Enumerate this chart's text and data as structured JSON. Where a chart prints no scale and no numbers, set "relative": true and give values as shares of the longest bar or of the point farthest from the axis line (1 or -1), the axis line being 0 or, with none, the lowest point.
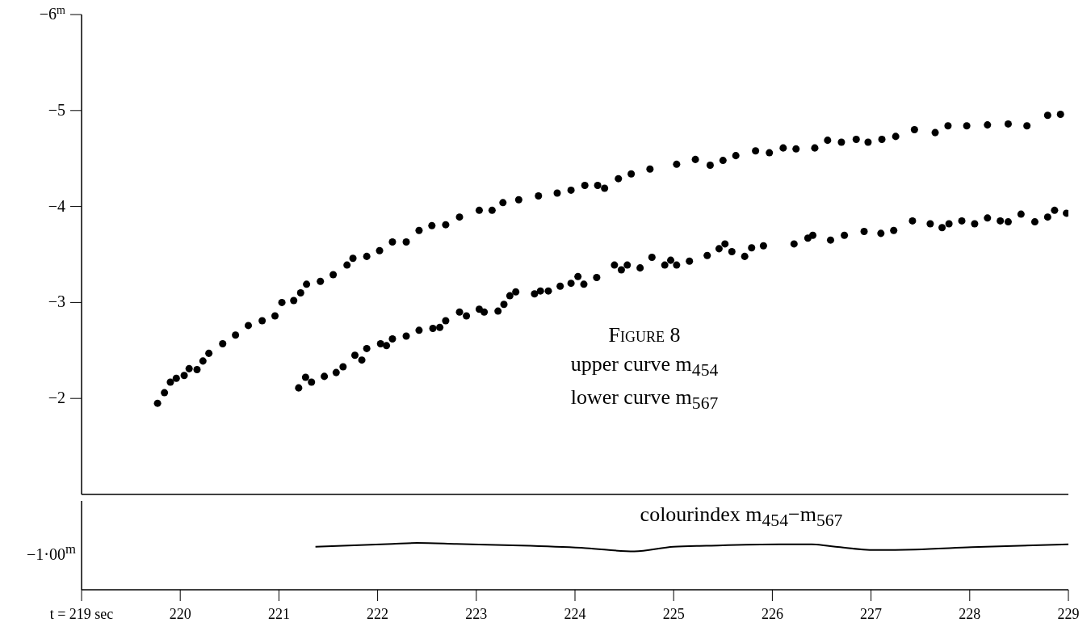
{
  "chart_data": [
    {
      "type": "scatter",
      "title": "Figure 8",
      "annotations": [
        "upper curve m$_{454}$",
        "lower curve m$_{567}$"
      ],
      "series": [
        {
          "color": "#000000",
          "x": [
            219.77,
            219.84,
            219.9,
            219.96,
            220.04,
            220.09,
            220.17,
            220.23,
            220.29,
            220.43,
            220.56,
            220.69,
            220.83,
            220.96,
            221.03,
            221.15,
            221.22,
            221.28,
            221.42,
            221.55,
            221.69,
            221.75,
            221.89,
            222.02,
            222.15,
            222.29,
            222.42,
            222.55,
            222.69,
            222.83,
            223.03,
            223.16,
            223.27,
            223.43,
            223.63,
            223.82,
            223.96,
            224.1,
            224.23,
            224.3,
            224.44,
            224.57,
            224.76,
            225.03,
            225.22,
            225.37,
            225.5,
            225.63,
            225.83,
            225.97,
            226.11,
            226.24,
            226.43,
            226.56,
            226.7,
            226.85,
            226.97,
            227.11,
            227.25,
            227.44,
            227.65,
            227.78,
            227.97,
            228.18,
            228.39,
            228.58,
            228.79,
            228.92
          ],
          "values": [
            -1.95,
            -2.06,
            -2.17,
            -2.21,
            -2.24,
            -2.31,
            -2.3,
            -2.39,
            -2.47,
            -2.57,
            -2.66,
            -2.76,
            -2.81,
            -2.86,
            -3,
            -3.02,
            -3.1,
            -3.19,
            -3.22,
            -3.29,
            -3.39,
            -3.46,
            -3.48,
            -3.54,
            -3.63,
            -3.63,
            -3.75,
            -3.8,
            -3.81,
            -3.89,
            -3.96,
            -3.96,
            -4.04,
            -4.07,
            -4.11,
            -4.14,
            -4.17,
            -4.22,
            -4.22,
            -4.19,
            -4.29,
            -4.34,
            -4.39,
            -4.44,
            -4.49,
            -4.43,
            -4.48,
            -4.53,
            -4.58,
            -4.56,
            -4.61,
            -4.6,
            -4.61,
            -4.69,
            -4.67,
            -4.7,
            -4.67,
            -4.7,
            -4.73,
            -4.8,
            -4.77,
            -4.84,
            -4.84,
            -4.85,
            -4.86,
            -4.84,
            -4.95,
            -4.96
          ]
        },
        {
          "color": "#000000",
          "x": [
            221.2,
            221.27,
            221.33,
            221.46,
            221.58,
            221.65,
            221.77,
            221.84,
            221.89,
            222.03,
            222.09,
            222.15,
            222.29,
            222.42,
            222.56,
            222.63,
            222.69,
            222.83,
            222.9,
            223.03,
            223.08,
            223.22,
            223.28,
            223.34,
            223.4,
            223.59,
            223.65,
            223.73,
            223.85,
            223.96,
            224.03,
            224.09,
            224.22,
            224.4,
            224.47,
            224.53,
            224.66,
            224.78,
            224.91,
            224.97,
            225.03,
            225.16,
            225.34,
            225.46,
            225.52,
            225.59,
            225.72,
            225.79,
            225.91,
            226.22,
            226.36,
            226.41,
            226.59,
            226.73,
            226.93,
            227.1,
            227.23,
            227.42,
            227.6,
            227.72,
            227.79,
            227.92,
            228.05,
            228.18,
            228.31,
            228.39,
            228.52,
            228.66,
            228.79,
            228.86,
            228.98
          ],
          "values": [
            -2.11,
            -2.22,
            -2.17,
            -2.23,
            -2.27,
            -2.33,
            -2.45,
            -2.4,
            -2.52,
            -2.57,
            -2.55,
            -2.62,
            -2.65,
            -2.71,
            -2.73,
            -2.74,
            -2.81,
            -2.9,
            -2.86,
            -2.93,
            -2.9,
            -2.91,
            -2.98,
            -3.07,
            -3.11,
            -3.09,
            -3.12,
            -3.12,
            -3.17,
            -3.2,
            -3.27,
            -3.19,
            -3.26,
            -3.39,
            -3.34,
            -3.39,
            -3.36,
            -3.47,
            -3.39,
            -3.44,
            -3.39,
            -3.43,
            -3.49,
            -3.56,
            -3.61,
            -3.53,
            -3.48,
            -3.57,
            -3.59,
            -3.61,
            -3.67,
            -3.7,
            -3.65,
            -3.7,
            -3.74,
            -3.72,
            -3.75,
            -3.85,
            -3.82,
            -3.78,
            -3.82,
            -3.85,
            -3.82,
            -3.88,
            -3.85,
            -3.84,
            -3.92,
            -3.84,
            -3.89,
            -3.96,
            -3.93
          ]
        }
      ],
      "xlim": [
        219,
        229
      ],
      "xticks": [
        220,
        221,
        222,
        223,
        224,
        225,
        226,
        227,
        228
      ],
      "ylim": [
        -1,
        -6
      ],
      "yticks": [
        {
          "value": -6,
          "label": "−6$^{m}$"
        },
        {
          "value": -5,
          "label": "−5"
        },
        {
          "value": -4,
          "label": "−4"
        },
        {
          "value": -3,
          "label": "−3"
        },
        {
          "value": -2,
          "label": "−2"
        }
      ],
      "tick_labels": "y",
      "marker": "circle"
    },
    {
      "type": "line",
      "relative": true,
      "annotations": [
        "colourindex m$_{454}$−m$_{567}$",
        "−1·00$^{m}$"
      ],
      "series": [
        {
          "color": "#000000",
          "x": [
            221.37,
            222.15,
            222.4,
            222.8,
            223.54,
            224.11,
            224.6,
            225,
            225.33,
            226.07,
            226.4,
            226.64,
            227.04,
            227.45,
            228.02,
            229
          ],
          "values": [
            0.92,
            0.98,
            1,
            0.98,
            0.94,
            0.89,
            0.82,
            0.92,
            0.94,
            0.97,
            0.97,
            0.92,
            0.85,
            0.86,
            0.91,
            0.97
          ]
        }
      ],
      "xlim": [
        219,
        229
      ],
      "xticks": [
        {
          "value": 219,
          "label": "t = 219 sec"
        },
        220,
        221,
        222,
        223,
        224,
        225,
        226,
        227,
        228,
        229
      ],
      "line_style": "solid"
    }
  ]
}
